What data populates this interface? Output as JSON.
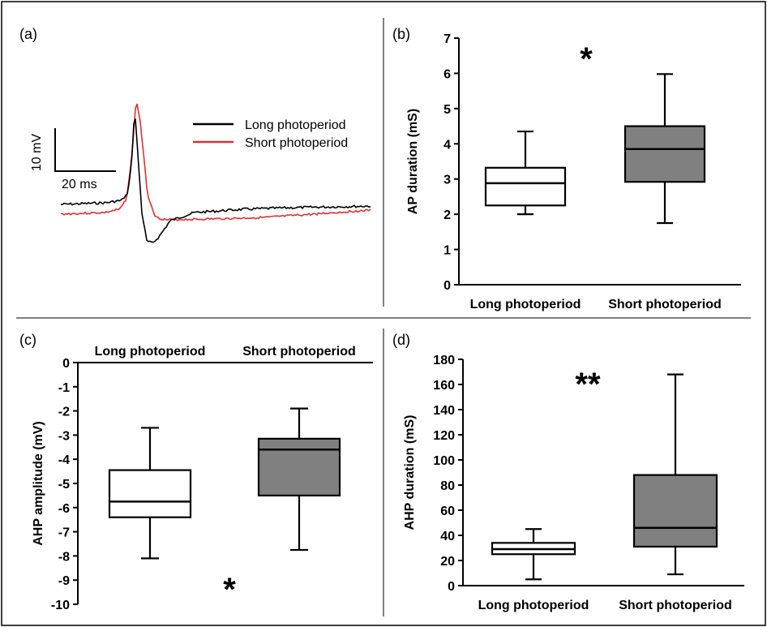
{
  "chart_data": [
    {
      "panel": "(a)",
      "type": "line",
      "legend": [
        "Long photoperiod",
        "Short photoperiod"
      ],
      "scale_bar": {
        "voltage": "10 mV",
        "time": "20 ms"
      },
      "colors": {
        "Long photoperiod": "#000000",
        "Short photoperiod": "#e03030"
      }
    },
    {
      "panel": "(b)",
      "type": "box",
      "ylabel": "AP duration (mS)",
      "ylim": [
        0,
        7
      ],
      "yticks": [
        0,
        1,
        2,
        3,
        4,
        5,
        6,
        7
      ],
      "significance": "*",
      "categories": [
        "Long photoperiod",
        "Short photoperiod"
      ],
      "boxes": [
        {
          "min": 2.0,
          "q1": 2.25,
          "median": 2.88,
          "q3": 3.32,
          "max": 4.35,
          "fill": "#ffffff"
        },
        {
          "min": 1.75,
          "q1": 2.92,
          "median": 3.85,
          "q3": 4.5,
          "max": 5.98,
          "fill": "#808080"
        }
      ]
    },
    {
      "panel": "(c)",
      "type": "box",
      "ylabel": "AHP amplitude (mV)",
      "ylim": [
        -10,
        0
      ],
      "yticks": [
        0,
        -1,
        -2,
        -3,
        -4,
        -5,
        -6,
        -7,
        -8,
        -9,
        -10
      ],
      "significance": "*",
      "categories": [
        "Long photoperiod",
        "Short photoperiod"
      ],
      "boxes": [
        {
          "min": -8.1,
          "q1": -6.4,
          "median": -5.75,
          "q3": -4.45,
          "max": -2.7,
          "fill": "#ffffff"
        },
        {
          "min": -7.75,
          "q1": -5.5,
          "median": -3.6,
          "q3": -3.15,
          "max": -1.9,
          "fill": "#808080"
        }
      ]
    },
    {
      "panel": "(d)",
      "type": "box",
      "ylabel": "AHP duration (mS)",
      "ylim": [
        0,
        180
      ],
      "yticks": [
        0,
        20,
        40,
        60,
        80,
        100,
        120,
        140,
        160,
        180
      ],
      "significance": "**",
      "categories": [
        "Long photoperiod",
        "Short photoperiod"
      ],
      "boxes": [
        {
          "min": 5,
          "q1": 25,
          "median": 29,
          "q3": 34,
          "max": 45,
          "fill": "#ffffff"
        },
        {
          "min": 9,
          "q1": 31,
          "median": 46,
          "q3": 88,
          "max": 168,
          "fill": "#808080"
        }
      ]
    }
  ]
}
